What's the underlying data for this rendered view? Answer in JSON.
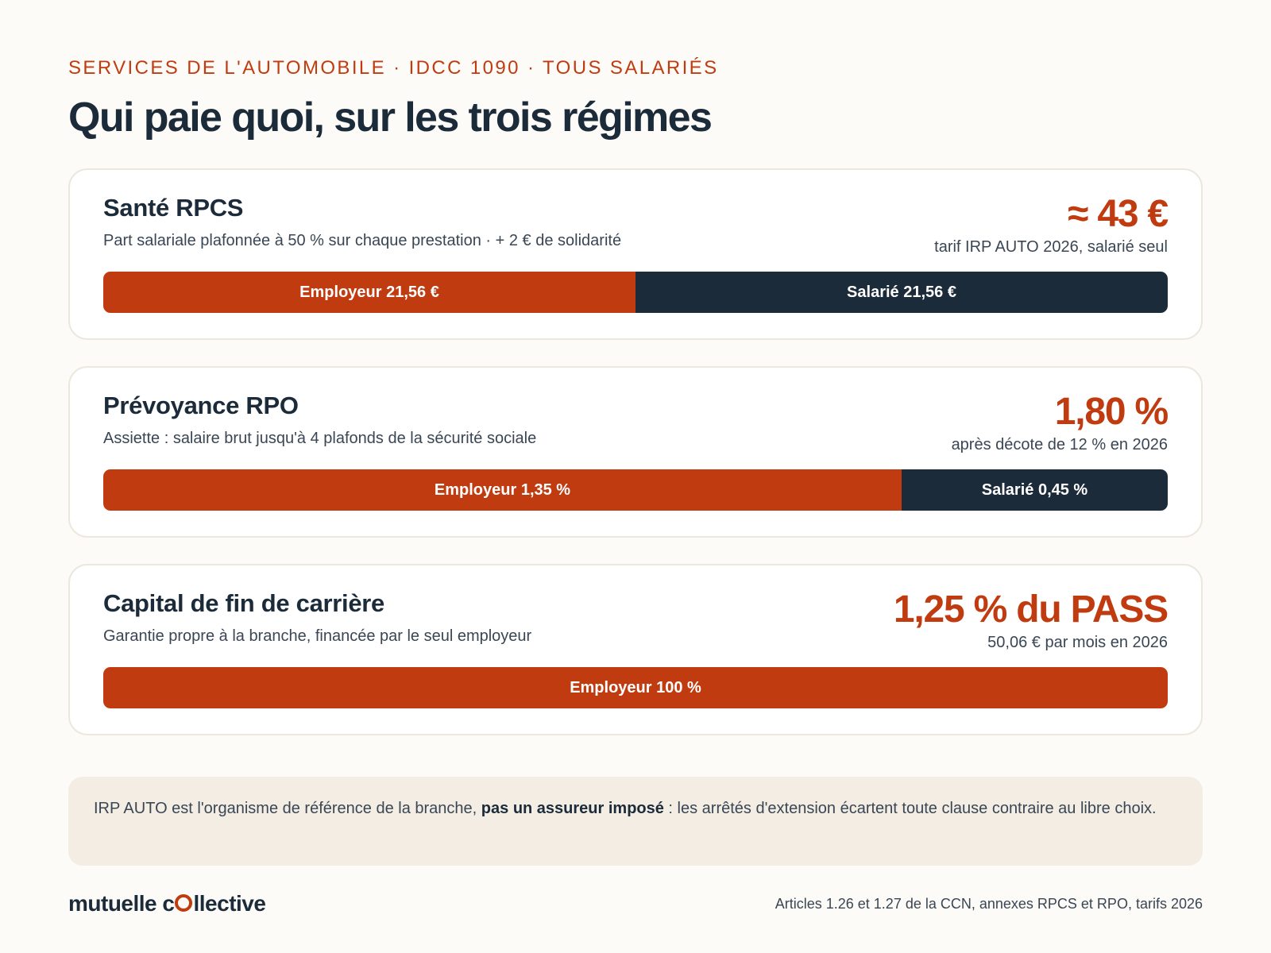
{
  "header": {
    "kicker": "SERVICES DE L'AUTOMOBILE · IDCC 1090 · TOUS SALARIÉS",
    "title": "Qui paie quoi, sur les trois régimes"
  },
  "colors": {
    "employer": "#c03c10",
    "employee": "#1c2b3a",
    "text": "#1c2b3a"
  },
  "chart_data": {
    "type": "bar",
    "orientation": "horizontal",
    "stacked": true,
    "normalized": true,
    "categories": [
      "Santé RPCS",
      "Prévoyance RPO",
      "Capital de fin de carrière"
    ],
    "series": [
      {
        "name": "Employeur",
        "values": [
          50,
          75,
          100
        ]
      },
      {
        "name": "Salarié",
        "values": [
          50,
          25,
          0
        ]
      }
    ],
    "cards": [
      {
        "name": "Santé RPCS",
        "description": "Part salariale plafonnée à 50 % sur chaque prestation · + 2 € de solidarité",
        "headline": "≈ 43 €",
        "note": "tarif IRP AUTO 2026, salarié seul",
        "segments": [
          {
            "role": "employer",
            "label": "Employeur 21,56 €",
            "share": 0.5
          },
          {
            "role": "employee",
            "label": "Salarié 21,56 €",
            "share": 0.5
          }
        ]
      },
      {
        "name": "Prévoyance RPO",
        "description": "Assiette : salaire brut jusqu'à 4 plafonds de la sécurité sociale",
        "headline": "1,80 %",
        "note": "après décote de 12 % en 2026",
        "segments": [
          {
            "role": "employer",
            "label": "Employeur 1,35 %",
            "share": 0.75
          },
          {
            "role": "employee",
            "label": "Salarié 0,45 %",
            "share": 0.25
          }
        ]
      },
      {
        "name": "Capital de fin de carrière",
        "description": "Garantie propre à la branche, financée par le seul employeur",
        "headline": "1,25 % du PASS",
        "note": "50,06 € par mois en 2026",
        "segments": [
          {
            "role": "employer",
            "label": "Employeur 100 %",
            "share": 1.0
          }
        ]
      }
    ]
  },
  "notice": {
    "before": "IRP AUTO est l'organisme de référence de la branche, ",
    "bold": "pas un assureur imposé",
    "after": " : les arrêtés d'extension écartent toute clause contraire au libre choix."
  },
  "footer": {
    "logo_pre": "mutuelle c",
    "logo_post": "llective",
    "source": "Articles 1.26 et 1.27 de la CCN, annexes RPCS et RPO, tarifs 2026"
  }
}
